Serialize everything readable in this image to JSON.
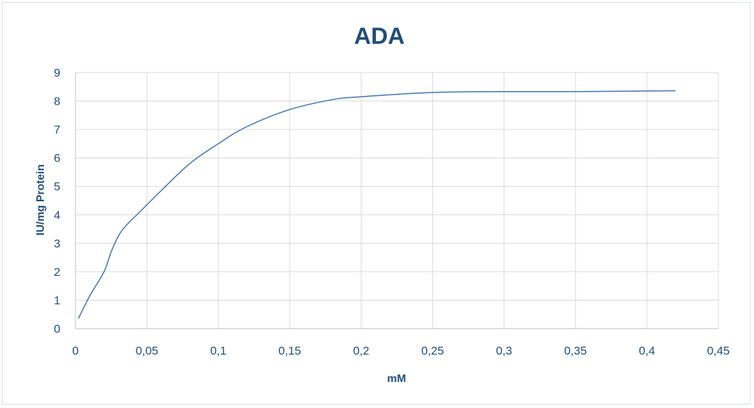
{
  "colors": {
    "title": "#1f4e79",
    "series": "#4a78b5",
    "grid": "#d9d9d9"
  },
  "chart_data": {
    "type": "line",
    "title": "ADA",
    "xlabel": "mM",
    "ylabel": "IU/mg Protein",
    "xlim": [
      0,
      0.45
    ],
    "ylim": [
      0,
      9
    ],
    "x_ticks": [
      "0",
      "0,05",
      "0,1",
      "0,15",
      "0,2",
      "0,25",
      "0,3",
      "0,35",
      "0,4",
      "0,45"
    ],
    "y_ticks": [
      "0",
      "1",
      "2",
      "3",
      "4",
      "5",
      "6",
      "7",
      "8",
      "9"
    ],
    "grid": true,
    "legend": "none",
    "series": [
      {
        "x": [
          0.002,
          0.01,
          0.02,
          0.025,
          0.03,
          0.035,
          0.045,
          0.06,
          0.08,
          0.1,
          0.12,
          0.15,
          0.18,
          0.2,
          0.25,
          0.3,
          0.35,
          0.42
        ],
        "y": [
          0.35,
          1.15,
          2.0,
          2.7,
          3.25,
          3.6,
          4.1,
          4.85,
          5.8,
          6.5,
          7.1,
          7.7,
          8.05,
          8.15,
          8.3,
          8.33,
          8.33,
          8.36
        ]
      }
    ]
  }
}
